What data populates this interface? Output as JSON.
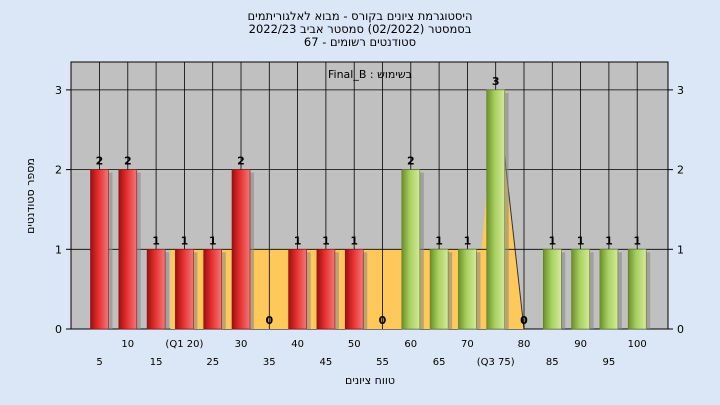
{
  "header": {
    "title_line1": "היסטוגרמת ציונים בקורס - מבוא לאלגוריתמים",
    "title_line2": "בסמסטר  (02/2022)  סמסטר אביב 2022/23",
    "title_line3": "סטודנטים רשומים - 67"
  },
  "chart_data": {
    "type": "bar",
    "annotation": "בשימוש : Final_B",
    "xlabel": "טווח ציונים",
    "ylabel": "מספר סטודנטים",
    "ylim": [
      0,
      3.35
    ],
    "yticks": [
      0,
      1,
      2,
      3
    ],
    "grid": true,
    "x": [
      5,
      10,
      15,
      20,
      25,
      30,
      35,
      40,
      45,
      50,
      55,
      60,
      65,
      70,
      75,
      80,
      85,
      90,
      95,
      100
    ],
    "x_tick_labels": [
      "5",
      "10",
      "15",
      "(Q1 20)",
      "25",
      "30",
      "35",
      "40",
      "45",
      "50",
      "55",
      "60",
      "65",
      "70",
      "(Q3 75)",
      "80",
      "85",
      "90",
      "95",
      "100"
    ],
    "values": [
      2,
      2,
      1,
      1,
      1,
      2,
      0,
      1,
      1,
      1,
      0,
      2,
      1,
      1,
      3,
      0,
      1,
      1,
      1,
      1
    ],
    "bar_groups": [
      "red",
      "red",
      "red",
      "red",
      "red",
      "red",
      "red",
      "red",
      "red",
      "red",
      "red",
      "green",
      "green",
      "green",
      "green",
      "green",
      "green",
      "green",
      "green",
      "green"
    ],
    "colors": {
      "plot_bg": "#c0c0c0",
      "band_fill": "#fec85a",
      "bar_red": "#e02a2a",
      "bar_red_dark": "#8c0f0f",
      "bar_green": "#a3cb5c",
      "bar_green_dark": "#5d7f22",
      "grid": "#000000"
    }
  }
}
